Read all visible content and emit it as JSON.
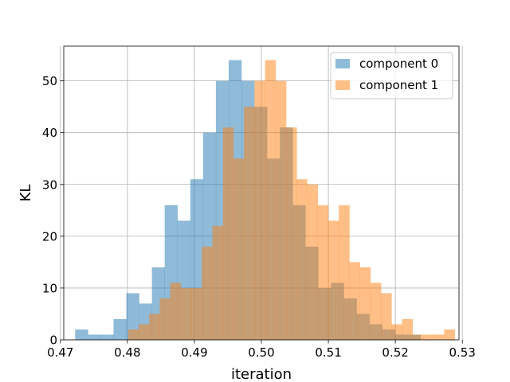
{
  "chart_data": {
    "type": "histogram",
    "xlabel": "iteration",
    "ylabel": "KL",
    "xlim": [
      0.4705,
      0.5295
    ],
    "ylim": [
      0,
      56.7
    ],
    "xticks": [
      0.47,
      0.48,
      0.49,
      0.5,
      0.51,
      0.52,
      0.53
    ],
    "xtick_labels": [
      "0.47",
      "0.48",
      "0.49",
      "0.50",
      "0.51",
      "0.52",
      "0.53"
    ],
    "yticks": [
      0,
      10,
      20,
      30,
      40,
      50
    ],
    "ytick_labels": [
      "0",
      "10",
      "20",
      "30",
      "40",
      "50"
    ],
    "grid": true,
    "legend_position": "top-right",
    "series": [
      {
        "name": "component 0",
        "color": "#1f77b4",
        "alpha": 0.5,
        "bin_start": 0.4722,
        "bin_width": 0.00191,
        "counts": [
          2,
          1,
          1,
          4,
          9,
          7,
          14,
          26,
          23,
          31,
          40,
          50,
          54,
          50,
          45,
          35,
          41,
          26,
          18,
          10,
          11,
          8,
          5,
          3,
          2,
          1,
          1,
          0,
          0
        ]
      },
      {
        "name": "component 1",
        "color": "#ff7f0e",
        "alpha": 0.5,
        "bin_start": 0.4801,
        "bin_width": 0.001573,
        "counts": [
          2,
          3,
          5,
          8,
          11,
          10,
          10,
          18,
          22,
          41,
          35,
          45,
          50,
          54,
          50,
          41,
          31,
          30,
          26,
          23,
          26,
          15,
          14,
          11,
          9,
          3,
          4,
          1,
          1,
          1,
          2
        ]
      }
    ]
  }
}
